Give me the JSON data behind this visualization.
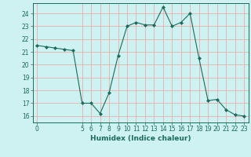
{
  "x": [
    0,
    1,
    2,
    3,
    4,
    5,
    6,
    7,
    8,
    9,
    10,
    11,
    12,
    13,
    14,
    15,
    16,
    17,
    18,
    19,
    20,
    21,
    22,
    23
  ],
  "y": [
    21.5,
    21.4,
    21.3,
    21.2,
    21.1,
    17.0,
    17.0,
    16.2,
    17.8,
    20.7,
    23.0,
    23.3,
    23.1,
    23.1,
    24.5,
    23.0,
    23.3,
    24.0,
    20.5,
    17.2,
    17.3,
    16.5,
    16.1,
    16.0
  ],
  "line_color": "#1a6b5a",
  "marker": "D",
  "marker_size": 2.0,
  "bg_color": "#cef2f2",
  "grid_color": "#f0a0a0",
  "xlabel": "Humidex (Indice chaleur)",
  "ylim": [
    15.5,
    24.8
  ],
  "xlim": [
    -0.5,
    23.5
  ],
  "yticks": [
    16,
    17,
    18,
    19,
    20,
    21,
    22,
    23,
    24
  ],
  "xticks": [
    0,
    5,
    6,
    7,
    8,
    9,
    10,
    11,
    12,
    13,
    14,
    15,
    16,
    17,
    18,
    19,
    20,
    21,
    22,
    23
  ],
  "label_fontsize": 6.5,
  "tick_fontsize": 5.5
}
